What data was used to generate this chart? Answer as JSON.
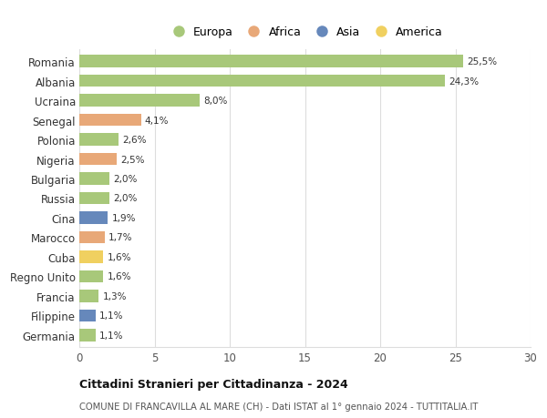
{
  "countries": [
    "Romania",
    "Albania",
    "Ucraina",
    "Senegal",
    "Polonia",
    "Nigeria",
    "Bulgaria",
    "Russia",
    "Cina",
    "Marocco",
    "Cuba",
    "Regno Unito",
    "Francia",
    "Filippine",
    "Germania"
  ],
  "values": [
    25.5,
    24.3,
    8.0,
    4.1,
    2.6,
    2.5,
    2.0,
    2.0,
    1.9,
    1.7,
    1.6,
    1.6,
    1.3,
    1.1,
    1.1
  ],
  "labels": [
    "25,5%",
    "24,3%",
    "8,0%",
    "4,1%",
    "2,6%",
    "2,5%",
    "2,0%",
    "2,0%",
    "1,9%",
    "1,7%",
    "1,6%",
    "1,6%",
    "1,3%",
    "1,1%",
    "1,1%"
  ],
  "continents": [
    "Europa",
    "Europa",
    "Europa",
    "Africa",
    "Europa",
    "Africa",
    "Europa",
    "Europa",
    "Asia",
    "Africa",
    "America",
    "Europa",
    "Europa",
    "Asia",
    "Europa"
  ],
  "colors": {
    "Europa": "#a8c87a",
    "Africa": "#e8a878",
    "Asia": "#6688bb",
    "America": "#f0d060"
  },
  "legend_order": [
    "Europa",
    "Africa",
    "Asia",
    "America"
  ],
  "xlim": [
    0,
    30
  ],
  "xticks": [
    0,
    5,
    10,
    15,
    20,
    25,
    30
  ],
  "title": "Cittadini Stranieri per Cittadinanza - 2024",
  "subtitle": "COMUNE DI FRANCAVILLA AL MARE (CH) - Dati ISTAT al 1° gennaio 2024 - TUTTITALIA.IT",
  "background_color": "#ffffff",
  "grid_color": "#dddddd"
}
